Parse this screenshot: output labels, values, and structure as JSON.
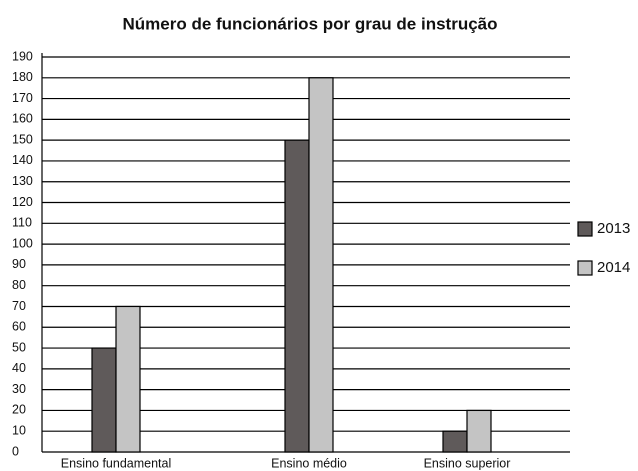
{
  "chart_data": {
    "type": "bar",
    "title": "Número de funcionários por grau de instrução",
    "categories": [
      "Ensino fundamental",
      "Ensino médio",
      "Ensino superior"
    ],
    "series": [
      {
        "name": "2013",
        "color": "#5f5a5a",
        "values": [
          50,
          150,
          10
        ]
      },
      {
        "name": "2014",
        "color": "#c4c4c4",
        "values": [
          70,
          180,
          20
        ]
      }
    ],
    "ylim": [
      0,
      190
    ],
    "yticks": [
      0,
      10,
      20,
      30,
      40,
      50,
      60,
      70,
      80,
      90,
      100,
      110,
      120,
      130,
      140,
      150,
      160,
      170,
      180,
      190
    ],
    "grid": true,
    "legend": "right"
  }
}
